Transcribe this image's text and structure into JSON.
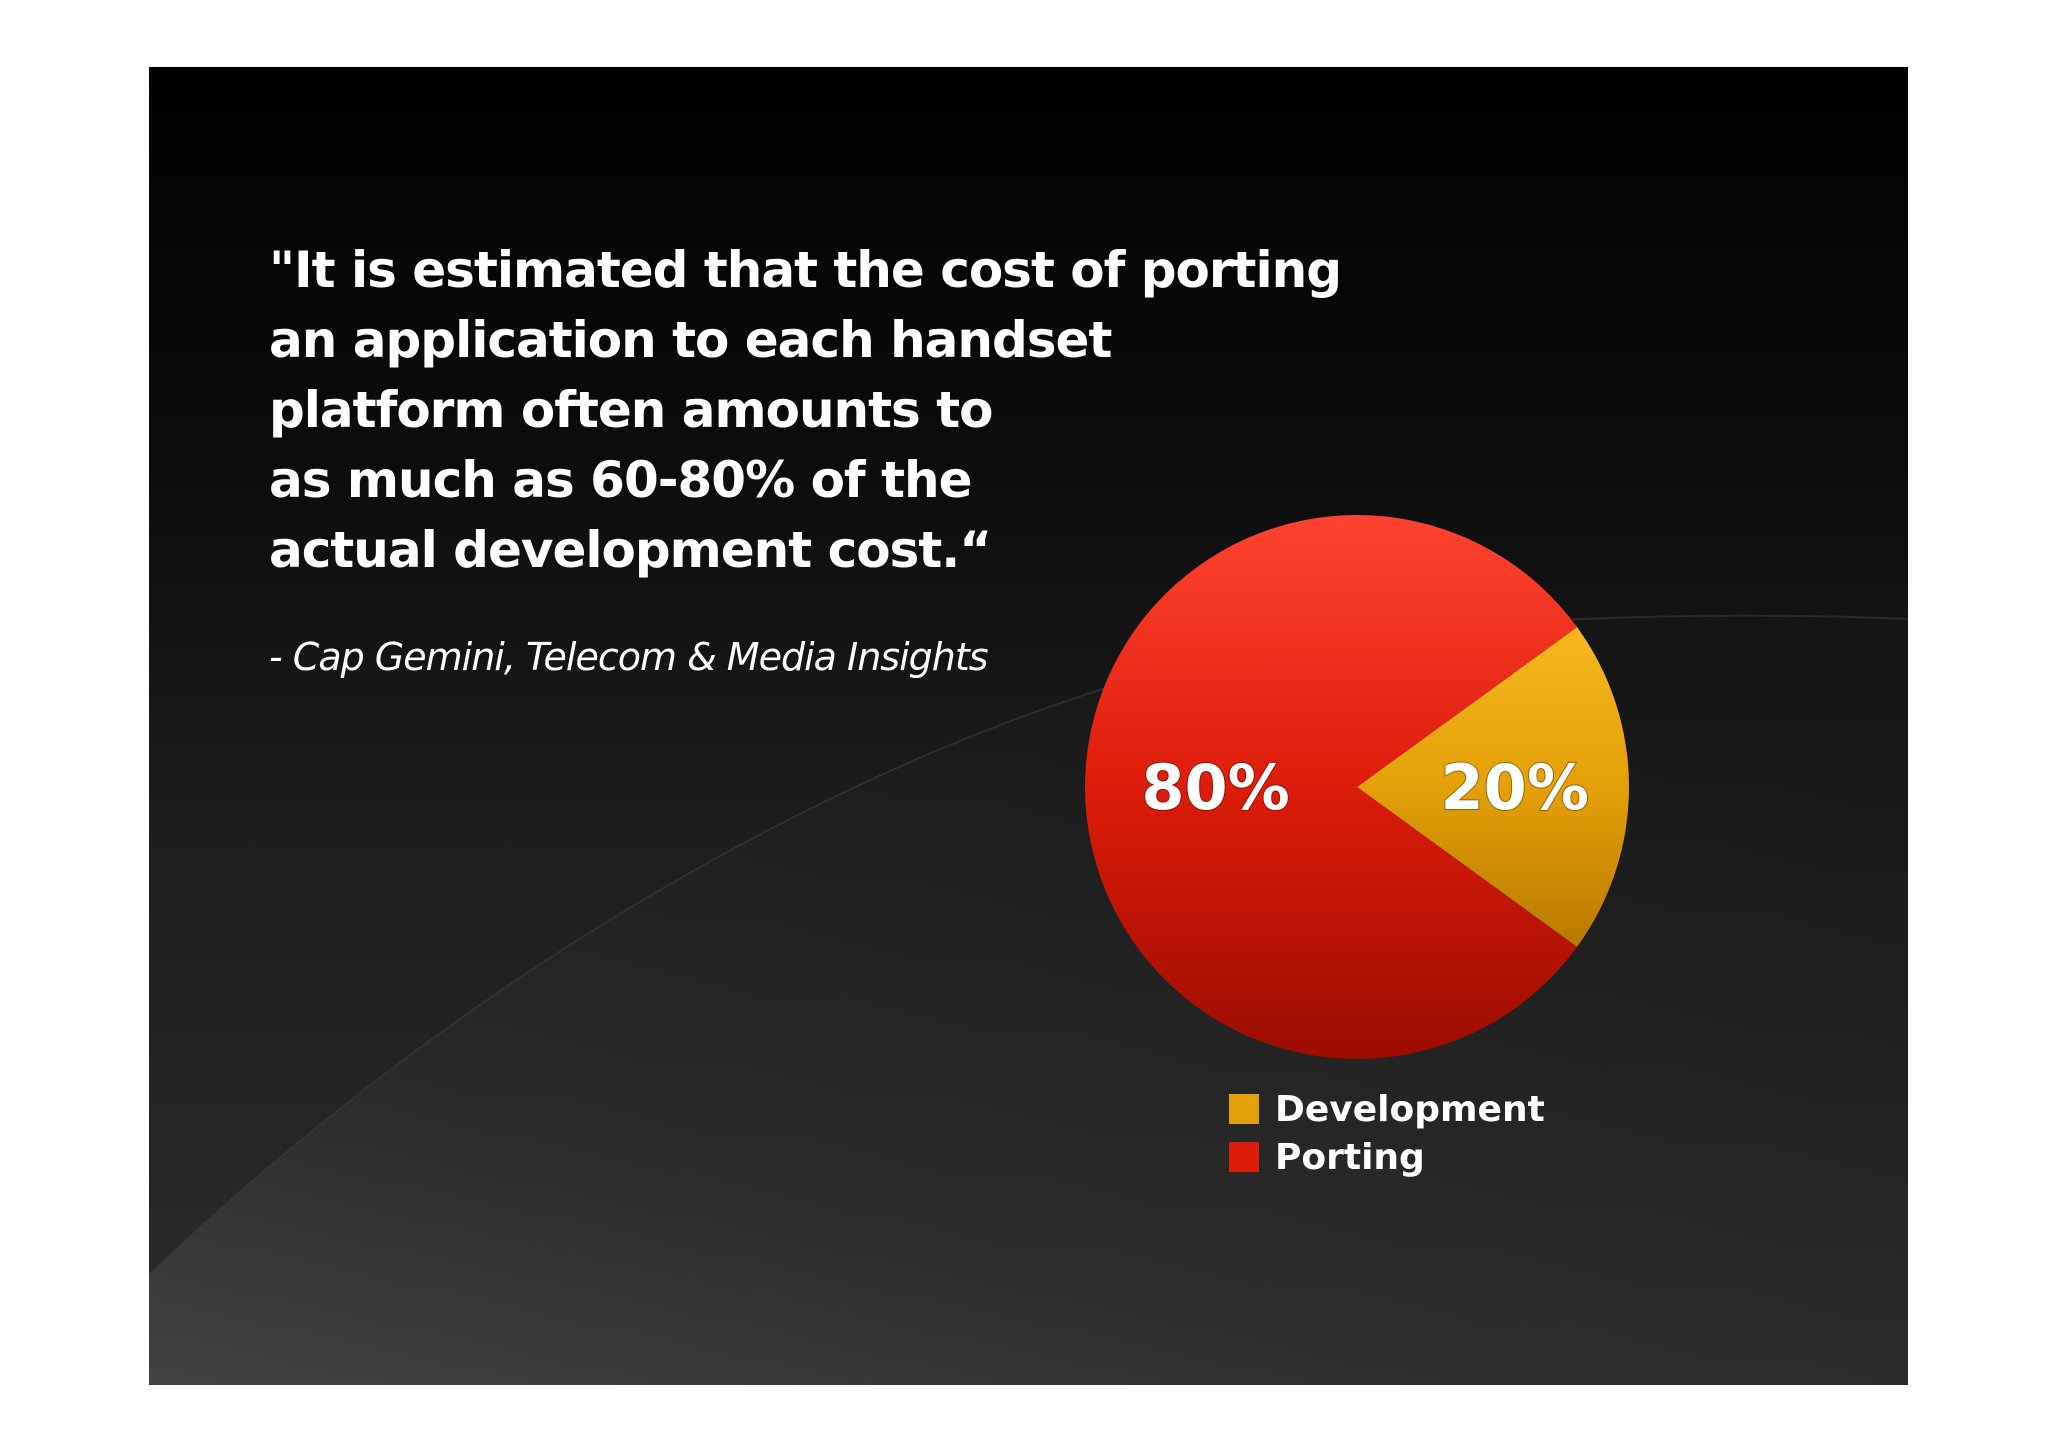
{
  "quote": {
    "lines": [
      "\"It is estimated that the cost of porting",
      "an application to each handset",
      "platform often amounts to",
      "as much as 60-80% of the",
      "actual development cost.“"
    ]
  },
  "attribution": "- Cap Gemini, Telecom & Media Insights",
  "chart_data": {
    "type": "pie",
    "title": "",
    "legend_position": "bottom",
    "slices": [
      {
        "name": "Development",
        "value": 20,
        "label": "20%",
        "color": "#e3a008",
        "color_light": "#f7b820",
        "color_dark": "#b87a00"
      },
      {
        "name": "Porting",
        "value": 80,
        "label": "80%",
        "color": "#dd1c0a",
        "color_light": "#ff4330",
        "color_dark": "#9b0d00"
      }
    ]
  },
  "legend": {
    "items": [
      {
        "label": "Development",
        "color": "#e3a008"
      },
      {
        "label": "Porting",
        "color": "#dd1c0a"
      }
    ]
  }
}
